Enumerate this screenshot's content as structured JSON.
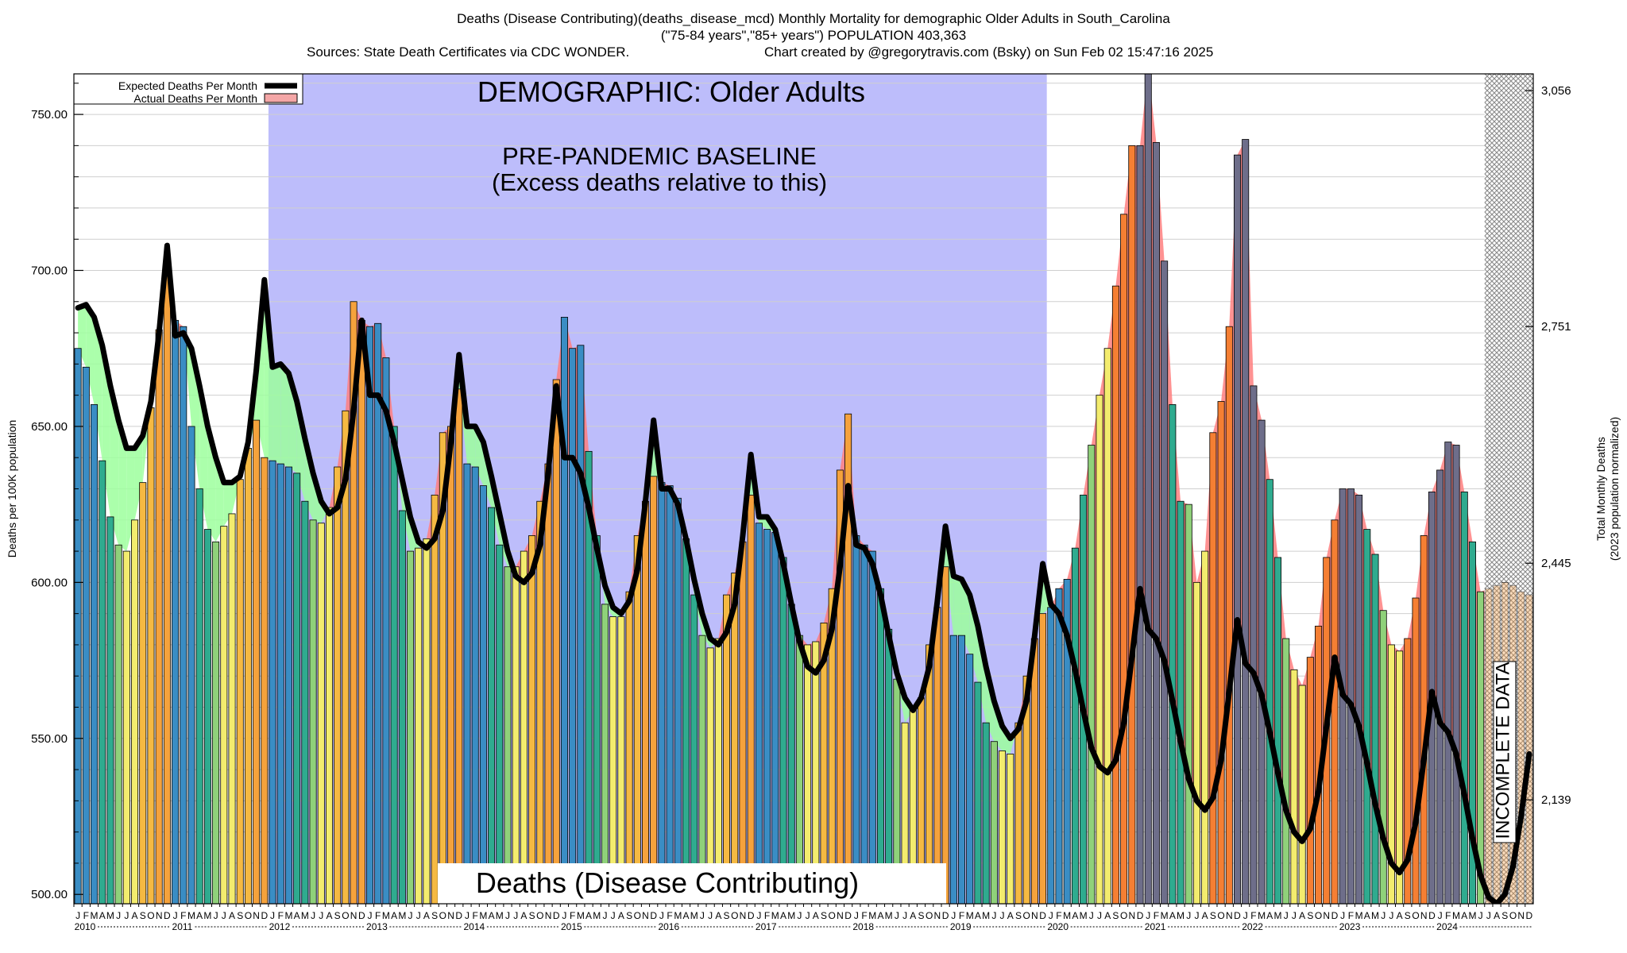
{
  "header": {
    "line1": "Deaths (Disease Contributing)(deaths_disease_mcd) Monthly Mortality for demographic Older Adults in South_Carolina",
    "line2": "(\"75-84 years\",\"85+ years\") POPULATION 403,363",
    "line3_left": "Sources: State Death Certificates via CDC WONDER.",
    "line3_right": "Chart created by @gregorytravis.com (Bsky) on Sun Feb 02 15:47:16 2025"
  },
  "chart_data": {
    "type": "bar",
    "title": "Deaths (Disease Contributing)",
    "demographic_label": "DEMOGRAPHIC: Older Adults",
    "baseline_label_line1": "PRE-PANDEMIC BASELINE",
    "baseline_label_line2": "(Excess deaths relative to this)",
    "incomplete_label": "INCOMPLETE DATA",
    "ylabel": "Deaths per 100K population",
    "y2label_line1": "Total Monthly Deaths",
    "y2label_line2": "(2023 population normalized)",
    "ylim": [
      497,
      763
    ],
    "yticks": [
      500,
      550,
      600,
      650,
      700,
      750
    ],
    "ytick_labels": [
      "500.00",
      "550.00",
      "600.00",
      "650.00",
      "700.00",
      "750.00"
    ],
    "y2ticks": [
      {
        "value": 2139,
        "label": "2,139"
      },
      {
        "value": 2445,
        "label": "2,445"
      },
      {
        "value": 2751,
        "label": "2,751"
      },
      {
        "value": 3056,
        "label": "3,056"
      }
    ],
    "start": "2010-01",
    "years": [
      "2010",
      "2011",
      "2012",
      "2013",
      "2014",
      "2015",
      "2016",
      "2017",
      "2018",
      "2019",
      "2020",
      "2021",
      "2022",
      "2023",
      "2024"
    ],
    "month_letters": [
      "J",
      "F",
      "M",
      "A",
      "M",
      "J",
      "J",
      "A",
      "S",
      "O",
      "N",
      "D"
    ],
    "baseline_period": [
      "2012-01",
      "2019-12"
    ],
    "incomplete_from": "2024-07",
    "legend": [
      {
        "label": "Expected Deaths Per Month",
        "color": "#000000"
      },
      {
        "label": "Actual Deaths Per Month",
        "color": "#f4a6a6"
      }
    ],
    "colors": {
      "baseline_fill": "#bdbdfb",
      "deficit_fill": "#9cff9c",
      "excess_fill": "#ff7f7f",
      "season_colors": [
        "#3a8dc4",
        "#3a8dc4",
        "#3a8dc4",
        "#2fab8f",
        "#2fab8f",
        "#8fd17a",
        "#f3ec6e",
        "#f3ec6e",
        "#f5b942",
        "#f5b942",
        "#f5a23c",
        "#f5a23c"
      ],
      "pandemic_colors": [
        "#3a8dc4",
        "#3a8dc4",
        "#3a8dc4",
        "#2fab8f",
        "#2fab8f",
        "#8fd17a",
        "#f3ec6e",
        "#f3ec6e",
        "#f57f33",
        "#f57f33",
        "#f57f33",
        "#f57f33"
      ],
      "pandemic_peak_color": "#6e6e8a",
      "incomplete_hatch": "#8a8a8a"
    },
    "series": [
      {
        "name": "Actual Deaths Per Month",
        "values": [
          675,
          669,
          657,
          639,
          621,
          612,
          610,
          620,
          632,
          656,
          681,
          700,
          684,
          682,
          650,
          630,
          617,
          613,
          618,
          622,
          633,
          643,
          652,
          640,
          639,
          638,
          637,
          635,
          626,
          620,
          619,
          624,
          637,
          655,
          690,
          684,
          682,
          683,
          672,
          650,
          623,
          610,
          611,
          614,
          628,
          648,
          650,
          662,
          638,
          637,
          631,
          624,
          612,
          605,
          605,
          610,
          615,
          626,
          638,
          665,
          685,
          675,
          676,
          642,
          615,
          593,
          589,
          589,
          597,
          615,
          626,
          634,
          632,
          631,
          627,
          614,
          596,
          583,
          579,
          582,
          596,
          603,
          613,
          628,
          619,
          617,
          616,
          608,
          593,
          583,
          580,
          581,
          587,
          598,
          636,
          654,
          615,
          612,
          610,
          598,
          585,
          569,
          555,
          559,
          563,
          580,
          592,
          605,
          583,
          583,
          577,
          568,
          555,
          549,
          546,
          545,
          555,
          570,
          582,
          590,
          592,
          598,
          601,
          611,
          628,
          644,
          660,
          675,
          695,
          718,
          740,
          740,
          765,
          741,
          703,
          657,
          626,
          625,
          600,
          610,
          648,
          658,
          682,
          737,
          742,
          663,
          652,
          633,
          608,
          582,
          572,
          567,
          576,
          586,
          608,
          620,
          630,
          630,
          628,
          617,
          609,
          591,
          580,
          578,
          582,
          595,
          615,
          629,
          636,
          645,
          644,
          629,
          613,
          597,
          598,
          599,
          600,
          599,
          597,
          596
        ]
      },
      {
        "name": "Expected Deaths Per Month",
        "values": [
          688,
          689,
          685,
          676,
          663,
          652,
          643,
          643,
          647,
          658,
          680,
          708,
          679,
          680,
          675,
          663,
          650,
          640,
          632,
          632,
          634,
          645,
          668,
          697,
          669,
          670,
          667,
          658,
          646,
          635,
          626,
          622,
          624,
          633,
          655,
          684,
          660,
          660,
          655,
          645,
          633,
          621,
          613,
          611,
          614,
          623,
          645,
          673,
          650,
          650,
          645,
          634,
          622,
          610,
          602,
          600,
          603,
          612,
          635,
          663,
          640,
          640,
          635,
          624,
          611,
          599,
          592,
          590,
          594,
          604,
          626,
          652,
          630,
          630,
          625,
          614,
          601,
          590,
          582,
          580,
          584,
          593,
          615,
          641,
          621,
          621,
          617,
          606,
          593,
          581,
          573,
          571,
          575,
          585,
          605,
          631,
          612,
          611,
          606,
          596,
          583,
          571,
          563,
          559,
          563,
          573,
          594,
          618,
          602,
          601,
          596,
          586,
          573,
          562,
          554,
          550,
          553,
          562,
          583,
          606,
          593,
          590,
          583,
          572,
          559,
          547,
          541,
          539,
          543,
          555,
          576,
          598,
          585,
          582,
          575,
          562,
          549,
          537,
          530,
          527,
          531,
          543,
          565,
          588,
          574,
          571,
          564,
          552,
          539,
          527,
          520,
          517,
          521,
          533,
          554,
          576,
          564,
          561,
          554,
          542,
          529,
          518,
          510,
          507,
          511,
          523,
          543,
          565,
          555,
          552,
          545,
          532,
          518,
          506,
          499,
          497,
          500,
          509,
          525,
          545
        ]
      }
    ]
  }
}
